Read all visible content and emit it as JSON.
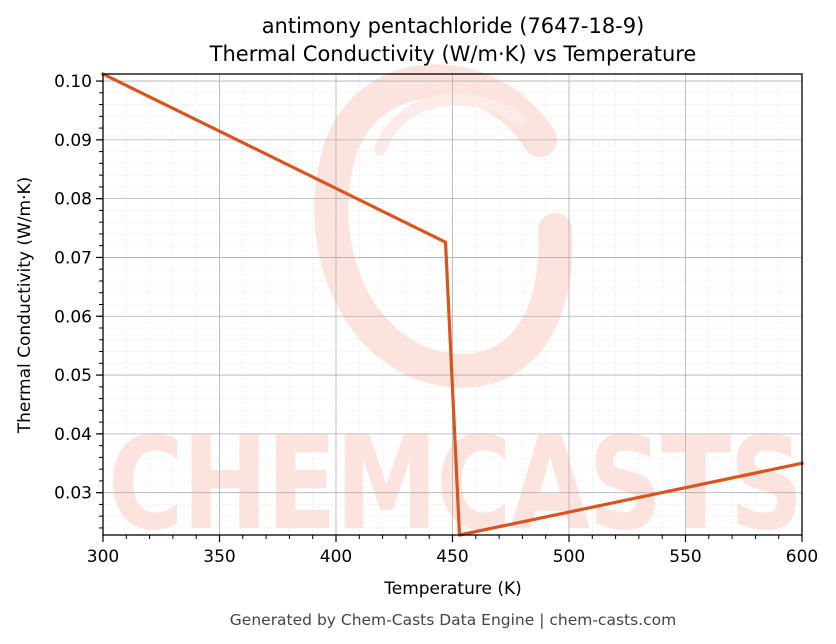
{
  "chart_data": {
    "type": "line",
    "title_line1": "antimony pentachloride (7647-18-9)",
    "title_line2": "Thermal Conductivity (W/m·K) vs Temperature",
    "xlabel": "Temperature (K)",
    "ylabel": "Thermal Conductivity (W/m·K)",
    "xlim": [
      300,
      600
    ],
    "ylim": [
      0.0228,
      0.1012
    ],
    "xticks": [
      300,
      350,
      400,
      450,
      500,
      550,
      600
    ],
    "xtick_labels": [
      "300",
      "350",
      "400",
      "450",
      "500",
      "550",
      "600"
    ],
    "yticks": [
      0.03,
      0.04,
      0.05,
      0.06,
      0.07,
      0.08,
      0.09,
      0.1
    ],
    "ytick_labels": [
      "0.03",
      "0.04",
      "0.05",
      "0.06",
      "0.07",
      "0.08",
      "0.09",
      "0.10"
    ],
    "grid": true,
    "series": [
      {
        "color": "#d9541e",
        "x": [
          300,
          447,
          453,
          600
        ],
        "y": [
          0.1012,
          0.0726,
          0.0228,
          0.035
        ]
      }
    ]
  },
  "watermark": {
    "text": "CHEMCASTS",
    "color": "#fde3de"
  },
  "footer": {
    "text": "Generated by Chem-Casts Data Engine | chem-casts.com"
  }
}
